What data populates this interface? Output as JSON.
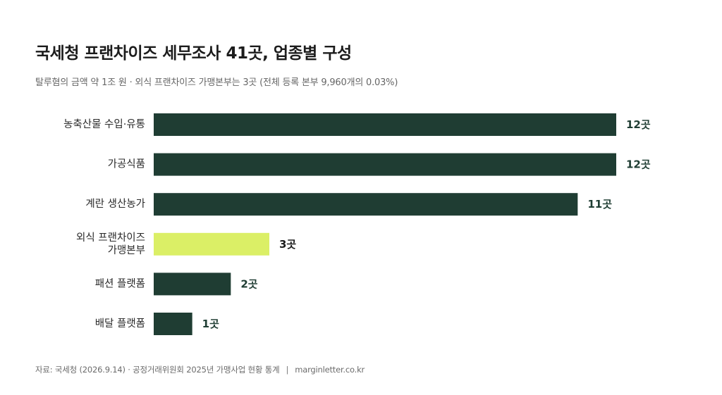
{
  "title": "국세청 프랜차이즈 세무조사 41곳, 업종별 구성",
  "subtitle": "탈루혐의 금액 약 1조 원 · 외식 프랜차이즈 가맹본부는 3곳 (전체 등록 본부 9,960개의 0.03%)",
  "footer": {
    "source": "자료: 국세청 (2026.9.14) · 공정거래위원회 2025년 가맹사업 현황 통계",
    "separator": "|",
    "site": "marginletter.co.kr"
  },
  "colors": {
    "bar_default": "#1f3d33",
    "bar_highlight": "#dbef66",
    "value_default": "#1f3d33",
    "value_highlight": "#1a1a1a"
  },
  "chart_data": {
    "type": "bar",
    "orientation": "horizontal",
    "categories": [
      [
        "농축산물 수입·유통"
      ],
      [
        "가공식품"
      ],
      [
        "계란 생산농가"
      ],
      [
        "외식 프랜차이즈",
        "가맹본부"
      ],
      [
        "패션 플랫폼"
      ],
      [
        "배달 플랫폼"
      ]
    ],
    "values": [
      12,
      12,
      11,
      3,
      2,
      1
    ],
    "value_labels": [
      "12곳",
      "12곳",
      "11곳",
      "3곳",
      "2곳",
      "1곳"
    ],
    "highlight_index": 3,
    "xlim": [
      0,
      12
    ],
    "grid": false,
    "legend": "none"
  }
}
